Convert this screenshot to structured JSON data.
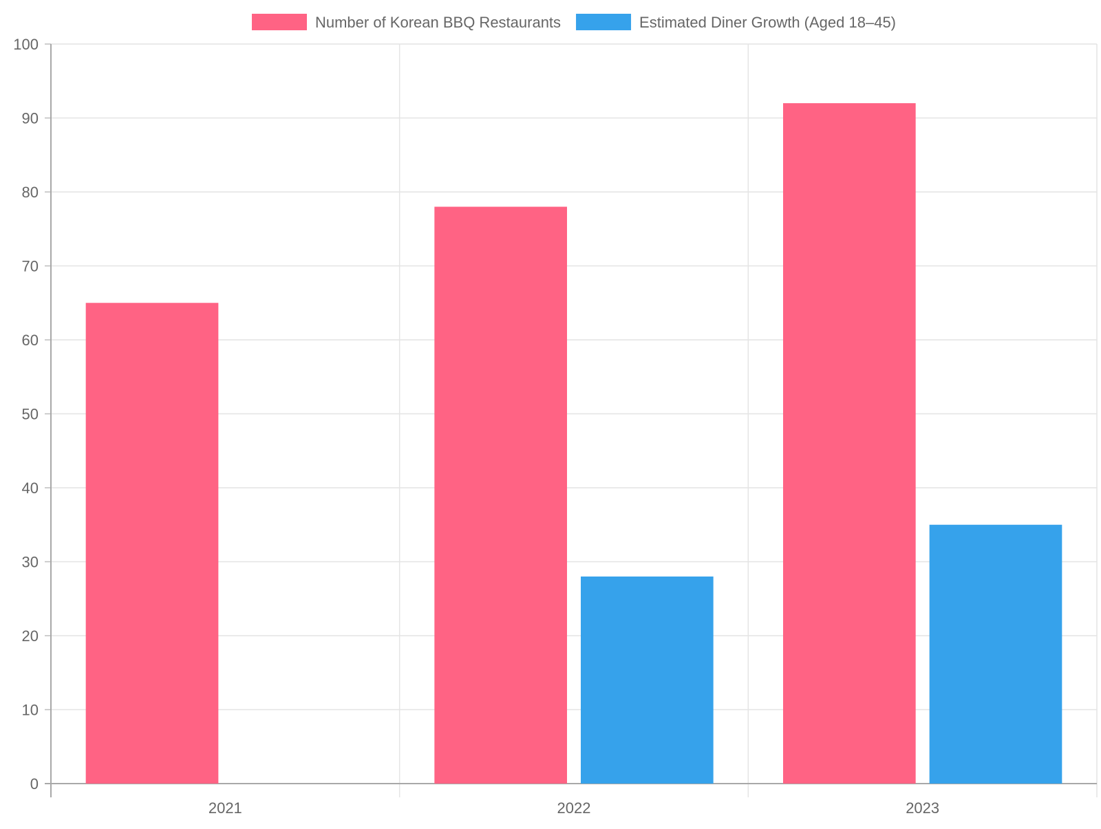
{
  "chart_data": {
    "type": "bar",
    "categories": [
      "2021",
      "2022",
      "2023"
    ],
    "series": [
      {
        "name": "Number of Korean BBQ Restaurants",
        "color": "#ff6384",
        "values": [
          65,
          78,
          92
        ]
      },
      {
        "name": "Estimated Diner Growth (Aged 18–45)",
        "color": "#36a2eb",
        "values": [
          null,
          28,
          35
        ]
      }
    ],
    "ylim": [
      0,
      100
    ],
    "yticks": [
      0,
      10,
      20,
      30,
      40,
      50,
      60,
      70,
      80,
      90,
      100
    ],
    "grid": true,
    "legend": "top-center"
  }
}
